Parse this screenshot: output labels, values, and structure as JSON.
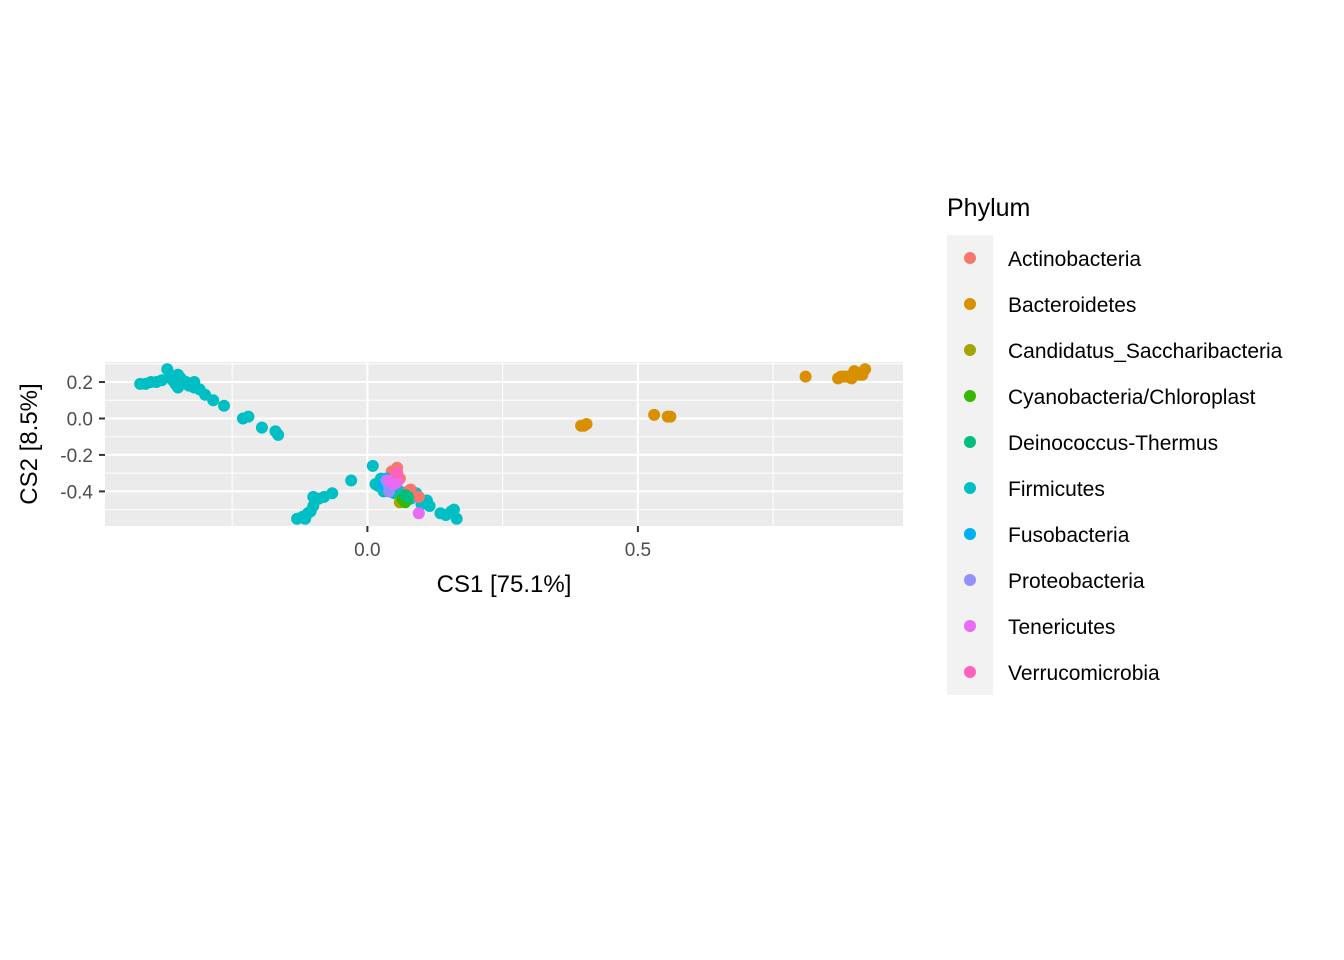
{
  "chart_data": {
    "type": "scatter",
    "xlabel": "CS1   [75.1%]",
    "ylabel": "CS2   [8.5%]",
    "xlim": [
      -0.485,
      0.99
    ],
    "ylim": [
      -0.59,
      0.31
    ],
    "x_ticks": [
      0.0,
      0.5
    ],
    "x_tick_labels": [
      "0.0",
      "0.5"
    ],
    "y_ticks": [
      0.2,
      0.0,
      -0.2,
      -0.4
    ],
    "y_tick_labels": [
      "0.2",
      "0.0",
      "-0.2",
      "-0.4"
    ],
    "grid": true,
    "legend": {
      "title": "Phylum",
      "placement": "right",
      "entries": [
        {
          "label": "Actinobacteria",
          "color": "#F8766D"
        },
        {
          "label": "Bacteroidetes",
          "color": "#D89000"
        },
        {
          "label": "Candidatus_Saccharibacteria",
          "color": "#A3A500"
        },
        {
          "label": "Cyanobacteria/Chloroplast",
          "color": "#39B600"
        },
        {
          "label": "Deinococcus-Thermus",
          "color": "#00BF7D"
        },
        {
          "label": "Firmicutes",
          "color": "#00BFC4"
        },
        {
          "label": "Fusobacteria",
          "color": "#00B0F6"
        },
        {
          "label": "Proteobacteria",
          "color": "#9590FF"
        },
        {
          "label": "Tenericutes",
          "color": "#E76BF3"
        },
        {
          "label": "Verrucomicrobia",
          "color": "#FF62BC"
        }
      ]
    },
    "series": [
      {
        "name": "Firmicutes",
        "points": [
          [
            -0.42,
            0.19
          ],
          [
            -0.41,
            0.19
          ],
          [
            -0.4,
            0.2
          ],
          [
            -0.39,
            0.2
          ],
          [
            -0.38,
            0.21
          ],
          [
            -0.37,
            0.27
          ],
          [
            -0.365,
            0.24
          ],
          [
            -0.36,
            0.21
          ],
          [
            -0.355,
            0.19
          ],
          [
            -0.35,
            0.17
          ],
          [
            -0.35,
            0.24
          ],
          [
            -0.345,
            0.22
          ],
          [
            -0.34,
            0.2
          ],
          [
            -0.335,
            0.2
          ],
          [
            -0.33,
            0.18
          ],
          [
            -0.32,
            0.17
          ],
          [
            -0.32,
            0.2
          ],
          [
            -0.31,
            0.16
          ],
          [
            -0.3,
            0.13
          ],
          [
            -0.285,
            0.1
          ],
          [
            -0.265,
            0.07
          ],
          [
            -0.23,
            0.0
          ],
          [
            -0.22,
            0.01
          ],
          [
            -0.195,
            -0.05
          ],
          [
            -0.17,
            -0.07
          ],
          [
            -0.165,
            -0.09
          ],
          [
            -0.13,
            -0.55
          ],
          [
            -0.12,
            -0.54
          ],
          [
            -0.115,
            -0.55
          ],
          [
            -0.11,
            -0.52
          ],
          [
            -0.105,
            -0.51
          ],
          [
            -0.1,
            -0.48
          ],
          [
            -0.1,
            -0.43
          ],
          [
            -0.09,
            -0.44
          ],
          [
            -0.08,
            -0.43
          ],
          [
            -0.065,
            -0.41
          ],
          [
            -0.03,
            -0.34
          ],
          [
            0.01,
            -0.26
          ],
          [
            0.015,
            -0.36
          ],
          [
            0.02,
            -0.37
          ],
          [
            0.025,
            -0.33
          ],
          [
            0.03,
            -0.35
          ],
          [
            0.03,
            -0.4
          ],
          [
            0.035,
            -0.38
          ],
          [
            0.05,
            -0.41
          ],
          [
            0.06,
            -0.4
          ],
          [
            0.08,
            -0.44
          ],
          [
            0.09,
            -0.41
          ],
          [
            0.1,
            -0.47
          ],
          [
            0.11,
            -0.45
          ],
          [
            0.115,
            -0.48
          ],
          [
            0.135,
            -0.52
          ],
          [
            0.145,
            -0.53
          ],
          [
            0.155,
            -0.51
          ],
          [
            0.16,
            -0.5
          ],
          [
            0.165,
            -0.55
          ]
        ]
      },
      {
        "name": "Bacteroidetes",
        "points": [
          [
            0.395,
            -0.04
          ],
          [
            0.4,
            -0.04
          ],
          [
            0.405,
            -0.03
          ],
          [
            0.53,
            0.02
          ],
          [
            0.555,
            0.01
          ],
          [
            0.56,
            0.01
          ],
          [
            0.81,
            0.23
          ],
          [
            0.87,
            0.22
          ],
          [
            0.875,
            0.23
          ],
          [
            0.88,
            0.23
          ],
          [
            0.885,
            0.23
          ],
          [
            0.89,
            0.23
          ],
          [
            0.895,
            0.22
          ],
          [
            0.9,
            0.26
          ],
          [
            0.905,
            0.25
          ],
          [
            0.91,
            0.24
          ],
          [
            0.915,
            0.25
          ],
          [
            0.92,
            0.27
          ],
          [
            0.915,
            0.24
          ]
        ]
      },
      {
        "name": "Actinobacteria",
        "points": [
          [
            0.045,
            -0.29
          ],
          [
            0.05,
            -0.31
          ],
          [
            0.055,
            -0.27
          ],
          [
            0.06,
            -0.33
          ],
          [
            0.075,
            -0.4
          ],
          [
            0.08,
            -0.39
          ],
          [
            0.095,
            -0.43
          ]
        ]
      },
      {
        "name": "Candidatus_Saccharibacteria",
        "points": [
          [
            0.06,
            -0.46
          ]
        ]
      },
      {
        "name": "Cyanobacteria/Chloroplast",
        "points": [
          [
            0.065,
            -0.44
          ],
          [
            0.07,
            -0.46
          ]
        ]
      },
      {
        "name": "Deinococcus-Thermus",
        "points": [
          [
            0.07,
            -0.42
          ],
          [
            0.075,
            -0.43
          ]
        ]
      },
      {
        "name": "Fusobacteria",
        "points": [
          [
            0.03,
            -0.36
          ],
          [
            0.035,
            -0.33
          ],
          [
            0.04,
            -0.4
          ]
        ]
      },
      {
        "name": "Proteobacteria",
        "points": [
          [
            0.035,
            -0.34
          ],
          [
            0.04,
            -0.37
          ],
          [
            0.045,
            -0.36
          ],
          [
            0.04,
            -0.4
          ]
        ]
      },
      {
        "name": "Tenericutes",
        "points": [
          [
            0.04,
            -0.34
          ],
          [
            0.05,
            -0.36
          ],
          [
            0.055,
            -0.35
          ],
          [
            0.095,
            -0.52
          ]
        ]
      },
      {
        "name": "Verrucomicrobia",
        "points": [
          [
            0.055,
            -0.3
          ]
        ]
      }
    ]
  }
}
